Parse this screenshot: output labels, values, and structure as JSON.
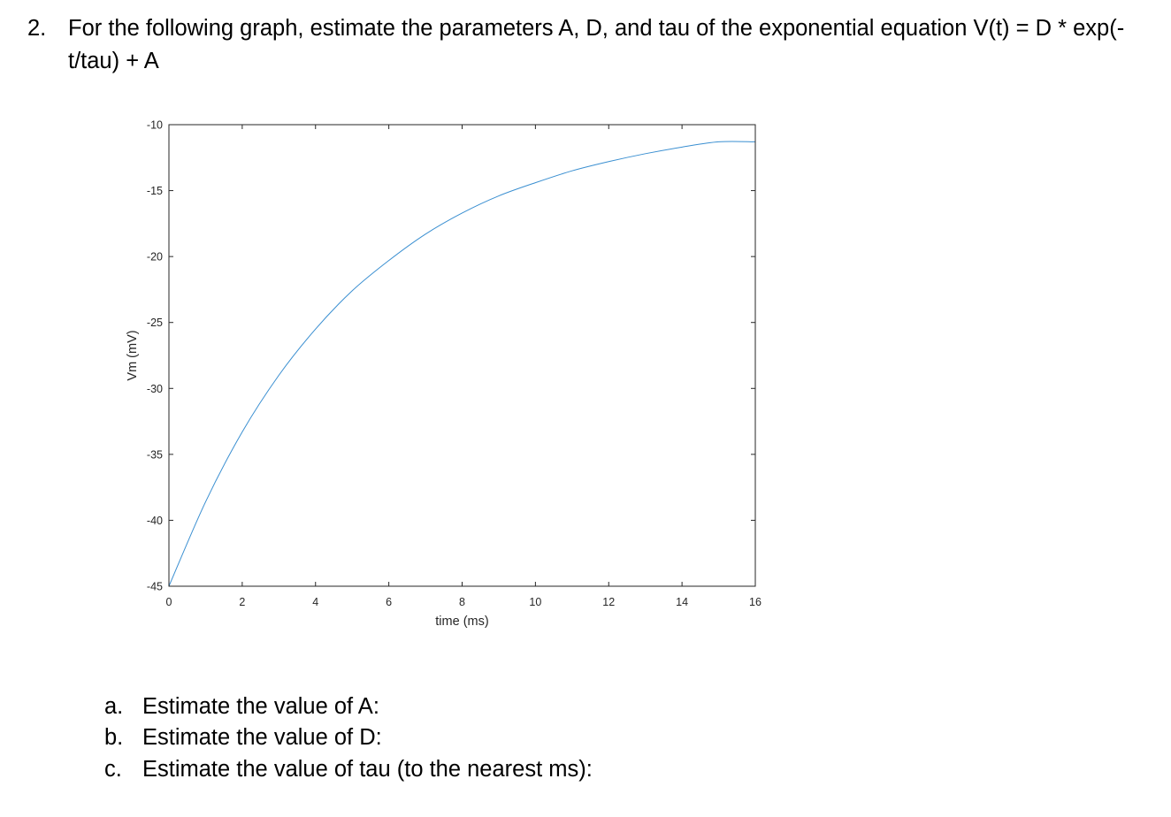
{
  "question": {
    "number": "2.",
    "text": "For the following graph, estimate the parameters A, D, and tau of the exponential equation V(t) = D * exp(-t/tau) + A"
  },
  "chart_data": {
    "type": "line",
    "title": "",
    "xlabel": "time (ms)",
    "ylabel": "Vm (mV)",
    "xlim": [
      0,
      16
    ],
    "ylim": [
      -45,
      -10
    ],
    "xticks": [
      0,
      2,
      4,
      6,
      8,
      10,
      12,
      14,
      16
    ],
    "xtick_labels": [
      "0",
      "2",
      "4",
      "6",
      "8",
      "10",
      "12",
      "14",
      "16"
    ],
    "yticks": [
      -45,
      -40,
      -35,
      -30,
      -25,
      -20,
      -15,
      -10
    ],
    "ytick_labels": [
      "-45",
      "-40",
      "-35",
      "-30",
      "-25",
      "-20",
      "-15",
      "-10"
    ],
    "grid": false,
    "series": [
      {
        "color": "#3a8fd1",
        "x": [
          0,
          1,
          2,
          3,
          4,
          5,
          6,
          7,
          8,
          9,
          10,
          11,
          12,
          13,
          14,
          15,
          16
        ],
        "y": [
          -45.0,
          -38.6,
          -33.3,
          -29.0,
          -25.5,
          -22.6,
          -20.3,
          -18.3,
          -16.7,
          -15.4,
          -14.4,
          -13.5,
          -12.8,
          -12.2,
          -11.7,
          -11.3,
          -11.3
        ]
      }
    ]
  },
  "subquestions": [
    {
      "letter": "a.",
      "text": "Estimate the value of A:"
    },
    {
      "letter": "b.",
      "text": "Estimate the value of D:"
    },
    {
      "letter": "c.",
      "text": "Estimate the value of tau (to the nearest ms):"
    }
  ]
}
